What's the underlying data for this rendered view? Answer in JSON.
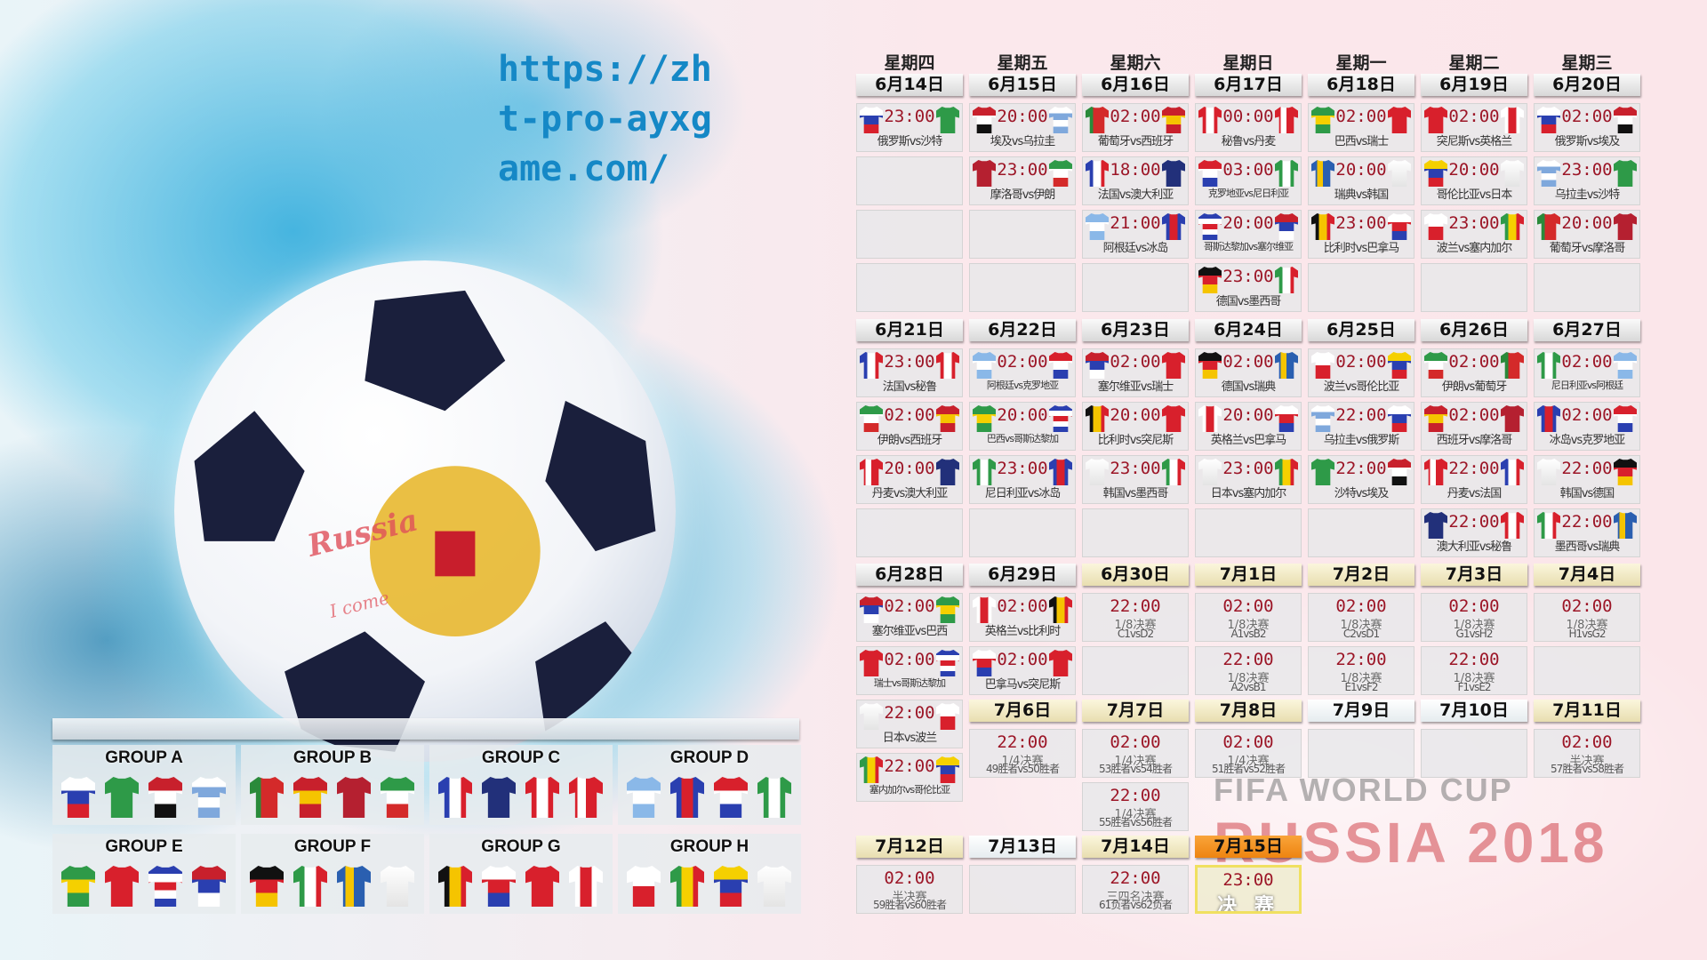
{
  "watermark": {
    "line1": "FIFA WORLD CUP",
    "line2": "RUSSIA 2018",
    "ball_text": "Russia",
    "ball_sub": "I come"
  },
  "url_overlay": "https://zh\nt-pro-ayxg\name.com/",
  "colors": {
    "time": "#9c1627",
    "url": "#1588c6",
    "final_header": "#f39a1e",
    "knockout_header": "#f3ecc8"
  },
  "weekdays": [
    "星期四",
    "星期五",
    "星期六",
    "星期日",
    "星期一",
    "星期二",
    "星期三"
  ],
  "jerseys": {
    "俄罗斯": {
      "dir": "h",
      "c": [
        "#fff",
        "#2a3fb0",
        "#d8202c"
      ]
    },
    "沙特": {
      "dir": "h",
      "c": [
        "#2e9a48"
      ]
    },
    "埃及": {
      "dir": "h",
      "c": [
        "#c8202c",
        "#fff",
        "#111"
      ]
    },
    "乌拉圭": {
      "dir": "h",
      "c": [
        "#fff",
        "#7fa8dc",
        "#fff",
        "#7fa8dc"
      ]
    },
    "葡萄牙": {
      "dir": "v",
      "c": [
        "#2a8a3a",
        "#d42a2a",
        "#d42a2a"
      ]
    },
    "西班牙": {
      "dir": "h",
      "c": [
        "#c8202c",
        "#f5c400",
        "#c8202c"
      ]
    },
    "摩洛哥": {
      "dir": "h",
      "c": [
        "#b52030"
      ]
    },
    "伊朗": {
      "dir": "h",
      "c": [
        "#2e9a48",
        "#fff",
        "#d42a2a"
      ]
    },
    "法国": {
      "dir": "v",
      "c": [
        "#2a3fb0",
        "#fff",
        "#d8202c"
      ]
    },
    "澳大利亚": {
      "dir": "h",
      "c": [
        "#22307a"
      ]
    },
    "秘鲁": {
      "dir": "v",
      "c": [
        "#d8202c",
        "#fff",
        "#d8202c"
      ]
    },
    "丹麦": {
      "dir": "v",
      "c": [
        "#d8202c",
        "#fff",
        "#d8202c",
        "#d8202c"
      ]
    },
    "阿根廷": {
      "dir": "h",
      "c": [
        "#8ab8e8",
        "#fff",
        "#8ab8e8"
      ]
    },
    "冰岛": {
      "dir": "v",
      "c": [
        "#2a3fb0",
        "#d8202c",
        "#2a3fb0"
      ]
    },
    "克罗地亚": {
      "dir": "h",
      "c": [
        "#d8202c",
        "#fff",
        "#2a3fb0"
      ]
    },
    "尼日利亚": {
      "dir": "v",
      "c": [
        "#2e9a48",
        "#fff",
        "#2e9a48"
      ]
    },
    "巴西": {
      "dir": "h",
      "c": [
        "#2e9a48",
        "#f5d000",
        "#2e9a48"
      ]
    },
    "瑞士": {
      "dir": "h",
      "c": [
        "#d8202c"
      ]
    },
    "哥斯达黎加": {
      "dir": "h",
      "c": [
        "#2a3fb0",
        "#fff",
        "#d8202c",
        "#fff",
        "#2a3fb0"
      ]
    },
    "塞尔维亚": {
      "dir": "h",
      "c": [
        "#c8202c",
        "#2a3fb0",
        "#fff"
      ]
    },
    "德国": {
      "dir": "h",
      "c": [
        "#111",
        "#d8202c",
        "#f5c400"
      ]
    },
    "墨西哥": {
      "dir": "v",
      "c": [
        "#2e9a48",
        "#fff",
        "#d8202c"
      ]
    },
    "瑞典": {
      "dir": "v",
      "c": [
        "#2a5fb0",
        "#f5c400",
        "#2a5fb0",
        "#2a5fb0"
      ]
    },
    "韩国": {
      "dir": "h",
      "c": [
        "#fff"
      ]
    },
    "比利时": {
      "dir": "v",
      "c": [
        "#111",
        "#f5c400",
        "#d8202c"
      ]
    },
    "巴拿马": {
      "dir": "h",
      "c": [
        "#fff",
        "#d8202c",
        "#2a3fb0"
      ]
    },
    "突尼斯": {
      "dir": "h",
      "c": [
        "#d8202c"
      ]
    },
    "英格兰": {
      "dir": "v",
      "c": [
        "#fff",
        "#d8202c",
        "#fff"
      ]
    },
    "波兰": {
      "dir": "h",
      "c": [
        "#fff",
        "#d8202c"
      ]
    },
    "塞内加尔": {
      "dir": "v",
      "c": [
        "#2e9a48",
        "#f5d000",
        "#d8202c"
      ]
    },
    "哥伦比亚": {
      "dir": "h",
      "c": [
        "#f5d000",
        "#2a3fb0",
        "#d8202c"
      ]
    },
    "日本": {
      "dir": "h",
      "c": [
        "#fff"
      ]
    }
  },
  "days": [
    {
      "date": "6月14日",
      "matches": [
        {
          "time": "23:00",
          "home": "俄罗斯",
          "away": "沙特",
          "label": "俄罗斯vs沙特"
        }
      ]
    },
    {
      "date": "6月15日",
      "matches": [
        {
          "time": "20:00",
          "home": "埃及",
          "away": "乌拉圭",
          "label": "埃及vs乌拉圭"
        },
        {
          "time": "23:00",
          "home": "摩洛哥",
          "away": "伊朗",
          "label": "摩洛哥vs伊朗"
        }
      ]
    },
    {
      "date": "6月16日",
      "matches": [
        {
          "time": "02:00",
          "home": "葡萄牙",
          "away": "西班牙",
          "label": "葡萄牙vs西班牙"
        },
        {
          "time": "18:00",
          "home": "法国",
          "away": "澳大利亚",
          "label": "法国vs澳大利亚"
        },
        {
          "time": "21:00",
          "home": "阿根廷",
          "away": "冰岛",
          "label": "阿根廷vs冰岛"
        }
      ]
    },
    {
      "date": "6月17日",
      "matches": [
        {
          "time": "00:00",
          "home": "秘鲁",
          "away": "丹麦",
          "label": "秘鲁vs丹麦"
        },
        {
          "time": "03:00",
          "home": "克罗地亚",
          "away": "尼日利亚",
          "label": "克罗地亚vs尼日利亚"
        },
        {
          "time": "20:00",
          "home": "哥斯达黎加",
          "away": "塞尔维亚",
          "label": "哥斯达黎加vs塞尔维亚"
        },
        {
          "time": "23:00",
          "home": "德国",
          "away": "墨西哥",
          "label": "德国vs墨西哥"
        }
      ]
    },
    {
      "date": "6月18日",
      "matches": [
        {
          "time": "02:00",
          "home": "巴西",
          "away": "瑞士",
          "label": "巴西vs瑞士"
        },
        {
          "time": "20:00",
          "home": "瑞典",
          "away": "韩国",
          "label": "瑞典vs韩国"
        },
        {
          "time": "23:00",
          "home": "比利时",
          "away": "巴拿马",
          "label": "比利时vs巴拿马"
        }
      ]
    },
    {
      "date": "6月19日",
      "matches": [
        {
          "time": "02:00",
          "home": "突尼斯",
          "away": "英格兰",
          "label": "突尼斯vs英格兰"
        },
        {
          "time": "20:00",
          "home": "哥伦比亚",
          "away": "日本",
          "label": "哥伦比亚vs日本"
        },
        {
          "time": "23:00",
          "home": "波兰",
          "away": "塞内加尔",
          "label": "波兰vs塞内加尔"
        }
      ]
    },
    {
      "date": "6月20日",
      "matches": [
        {
          "time": "02:00",
          "home": "俄罗斯",
          "away": "埃及",
          "label": "俄罗斯vs埃及"
        },
        {
          "time": "23:00",
          "home": "乌拉圭",
          "away": "沙特",
          "label": "乌拉圭vs沙特"
        },
        {
          "time": "20:00",
          "home": "葡萄牙",
          "away": "摩洛哥",
          "label": "葡萄牙vs摩洛哥"
        }
      ]
    },
    {
      "date": "6月21日",
      "matches": [
        {
          "time": "23:00",
          "home": "法国",
          "away": "秘鲁",
          "label": "法国vs秘鲁"
        },
        {
          "time": "02:00",
          "home": "伊朗",
          "away": "西班牙",
          "label": "伊朗vs西班牙"
        },
        {
          "time": "20:00",
          "home": "丹麦",
          "away": "澳大利亚",
          "label": "丹麦vs澳大利亚"
        }
      ]
    },
    {
      "date": "6月22日",
      "matches": [
        {
          "time": "02:00",
          "home": "阿根廷",
          "away": "克罗地亚",
          "label": "阿根廷vs克罗地亚"
        },
        {
          "time": "20:00",
          "home": "巴西",
          "away": "哥斯达黎加",
          "label": "巴西vs哥斯达黎加"
        },
        {
          "time": "23:00",
          "home": "尼日利亚",
          "away": "冰岛",
          "label": "尼日利亚vs冰岛"
        }
      ]
    },
    {
      "date": "6月23日",
      "matches": [
        {
          "time": "02:00",
          "home": "塞尔维亚",
          "away": "瑞士",
          "label": "塞尔维亚vs瑞士"
        },
        {
          "time": "20:00",
          "home": "比利时",
          "away": "突尼斯",
          "label": "比利时vs突尼斯"
        },
        {
          "time": "23:00",
          "home": "韩国",
          "away": "墨西哥",
          "label": "韩国vs墨西哥"
        }
      ]
    },
    {
      "date": "6月24日",
      "matches": [
        {
          "time": "02:00",
          "home": "德国",
          "away": "瑞典",
          "label": "德国vs瑞典"
        },
        {
          "time": "20:00",
          "home": "英格兰",
          "away": "巴拿马",
          "label": "英格兰vs巴拿马"
        },
        {
          "time": "23:00",
          "home": "日本",
          "away": "塞内加尔",
          "label": "日本vs塞内加尔"
        }
      ]
    },
    {
      "date": "6月25日",
      "matches": [
        {
          "time": "02:00",
          "home": "波兰",
          "away": "哥伦比亚",
          "label": "波兰vs哥伦比亚"
        },
        {
          "time": "22:00",
          "home": "乌拉圭",
          "away": "俄罗斯",
          "label": "乌拉圭vs俄罗斯"
        },
        {
          "time": "22:00",
          "home": "沙特",
          "away": "埃及",
          "label": "沙特vs埃及"
        }
      ]
    },
    {
      "date": "6月26日",
      "matches": [
        {
          "time": "02:00",
          "home": "伊朗",
          "away": "葡萄牙",
          "label": "伊朗vs葡萄牙"
        },
        {
          "time": "02:00",
          "home": "西班牙",
          "away": "摩洛哥",
          "label": "西班牙vs摩洛哥"
        },
        {
          "time": "22:00",
          "home": "丹麦",
          "away": "法国",
          "label": "丹麦vs法国"
        },
        {
          "time": "22:00",
          "home": "澳大利亚",
          "away": "秘鲁",
          "label": "澳大利亚vs秘鲁"
        }
      ]
    },
    {
      "date": "6月27日",
      "matches": [
        {
          "time": "02:00",
          "home": "尼日利亚",
          "away": "阿根廷",
          "label": "尼日利亚vs阿根廷"
        },
        {
          "time": "02:00",
          "home": "冰岛",
          "away": "克罗地亚",
          "label": "冰岛vs克罗地亚"
        },
        {
          "time": "22:00",
          "home": "韩国",
          "away": "德国",
          "label": "韩国vs德国"
        },
        {
          "time": "22:00",
          "home": "墨西哥",
          "away": "瑞典",
          "label": "墨西哥vs瑞典"
        }
      ]
    },
    {
      "date": "6月28日",
      "matches": [
        {
          "time": "02:00",
          "home": "塞尔维亚",
          "away": "巴西",
          "label": "塞尔维亚vs巴西"
        },
        {
          "time": "02:00",
          "home": "瑞士",
          "away": "哥斯达黎加",
          "label": "瑞士vs哥斯达黎加"
        },
        {
          "time": "22:00",
          "home": "日本",
          "away": "波兰",
          "label": "日本vs波兰"
        },
        {
          "time": "22:00",
          "home": "塞内加尔",
          "away": "哥伦比亚",
          "label": "塞内加尔vs哥伦比亚"
        }
      ]
    },
    {
      "date": "6月29日",
      "matches": [
        {
          "time": "02:00",
          "home": "英格兰",
          "away": "比利时",
          "label": "英格兰vs比利时"
        },
        {
          "time": "02:00",
          "home": "巴拿马",
          "away": "突尼斯",
          "label": "巴拿马vs突尼斯"
        }
      ]
    },
    {
      "date": "6月30日",
      "matches": [
        {
          "time": "22:00",
          "stage": "1/8决赛",
          "pair": "C1vsD2"
        }
      ]
    },
    {
      "date": "7月1日",
      "matches": [
        {
          "time": "02:00",
          "stage": "1/8决赛",
          "pair": "A1vsB2"
        },
        {
          "time": "22:00",
          "stage": "1/8决赛",
          "pair": "A2vsB1"
        }
      ]
    },
    {
      "date": "7月2日",
      "matches": [
        {
          "time": "02:00",
          "stage": "1/8决赛",
          "pair": "C2vsD1"
        },
        {
          "time": "22:00",
          "stage": "1/8决赛",
          "pair": "E1vsF2"
        }
      ]
    },
    {
      "date": "7月3日",
      "matches": [
        {
          "time": "02:00",
          "stage": "1/8决赛",
          "pair": "G1vsH2"
        },
        {
          "time": "22:00",
          "stage": "1/8决赛",
          "pair": "F1vsE2"
        }
      ]
    },
    {
      "date": "7月4日",
      "matches": [
        {
          "time": "02:00",
          "stage": "1/8决赛",
          "pair": "H1vsG2"
        }
      ]
    },
    {
      "date": "7月6日",
      "matches": [
        {
          "time": "22:00",
          "stage": "1/4决赛",
          "pair": "49胜者vs50胜者"
        }
      ]
    },
    {
      "date": "7月7日",
      "matches": [
        {
          "time": "02:00",
          "stage": "1/4决赛",
          "pair": "53胜者vs54胜者"
        },
        {
          "time": "22:00",
          "stage": "1/4决赛",
          "pair": "55胜者vs56胜者"
        }
      ]
    },
    {
      "date": "7月8日",
      "matches": [
        {
          "time": "02:00",
          "stage": "1/4决赛",
          "pair": "51胜者vs52胜者"
        }
      ]
    },
    {
      "date": "7月9日",
      "matches": []
    },
    {
      "date": "7月10日",
      "matches": []
    },
    {
      "date": "7月11日",
      "matches": [
        {
          "time": "02:00",
          "stage": "半决赛",
          "pair": "57胜者vs58胜者"
        }
      ]
    },
    {
      "date": "7月12日",
      "matches": [
        {
          "time": "02:00",
          "stage": "半决赛",
          "pair": "59胜者vs60胜者"
        }
      ]
    },
    {
      "date": "7月13日",
      "matches": []
    },
    {
      "date": "7月14日",
      "matches": [
        {
          "time": "22:00",
          "stage": "三四名决赛",
          "pair": "61负者vs62负者"
        }
      ]
    },
    {
      "date": "7月15日",
      "matches": [
        {
          "time": "23:00",
          "final": "决 赛"
        }
      ]
    }
  ],
  "groups": [
    {
      "name": "GROUP A",
      "teams": [
        "俄罗斯",
        "沙特",
        "埃及",
        "乌拉圭"
      ]
    },
    {
      "name": "GROUP B",
      "teams": [
        "葡萄牙",
        "西班牙",
        "摩洛哥",
        "伊朗"
      ]
    },
    {
      "name": "GROUP C",
      "teams": [
        "法国",
        "澳大利亚",
        "秘鲁",
        "丹麦"
      ]
    },
    {
      "name": "GROUP D",
      "teams": [
        "阿根廷",
        "冰岛",
        "克罗地亚",
        "尼日利亚"
      ]
    },
    {
      "name": "GROUP E",
      "teams": [
        "巴西",
        "瑞士",
        "哥斯达黎加",
        "塞尔维亚"
      ]
    },
    {
      "name": "GROUP F",
      "teams": [
        "德国",
        "墨西哥",
        "瑞典",
        "韩国"
      ]
    },
    {
      "name": "GROUP G",
      "teams": [
        "比利时",
        "巴拿马",
        "突尼斯",
        "英格兰"
      ]
    },
    {
      "name": "GROUP H",
      "teams": [
        "波兰",
        "塞内加尔",
        "哥伦比亚",
        "日本"
      ]
    }
  ]
}
